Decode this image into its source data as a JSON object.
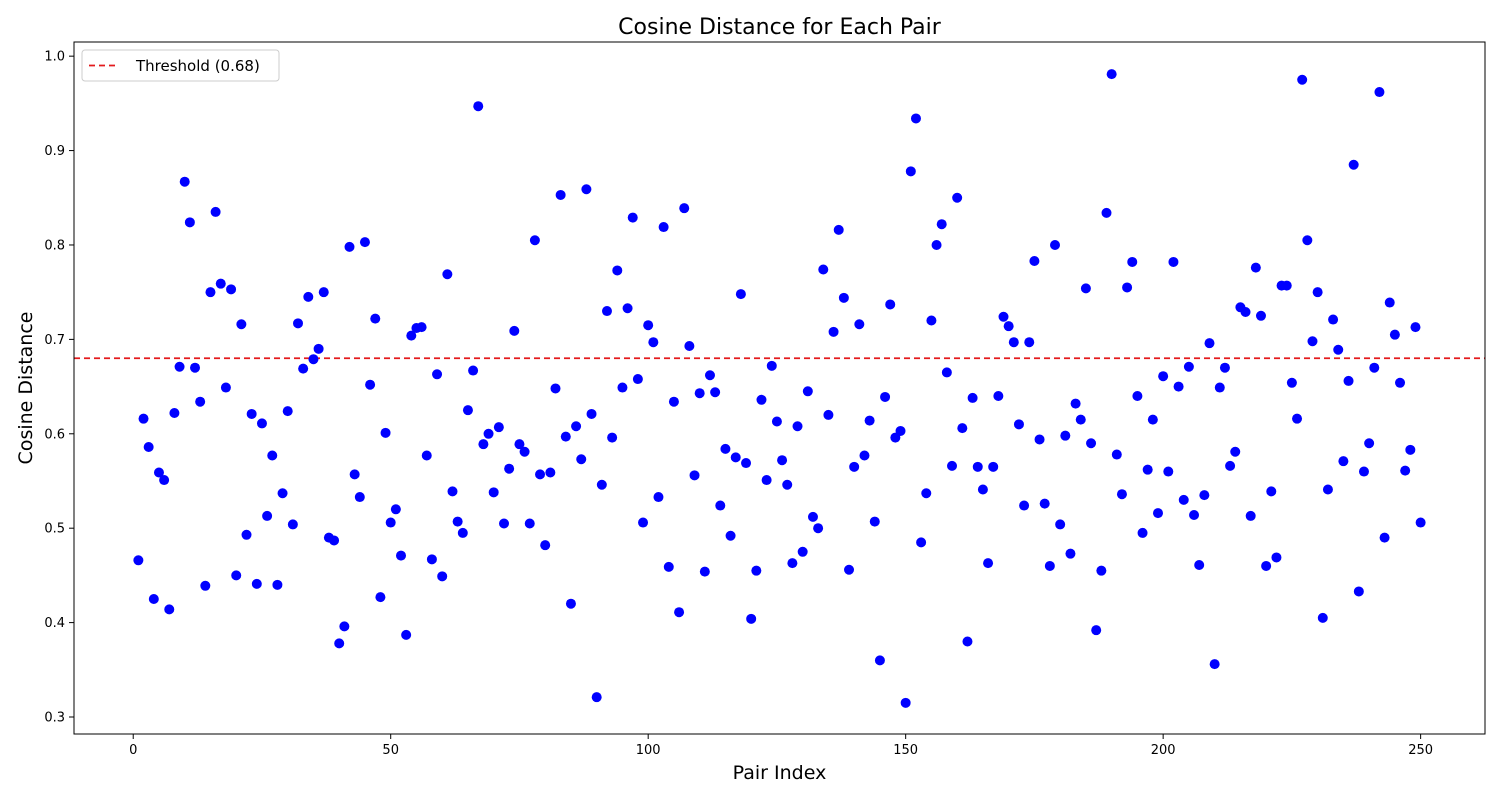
{
  "chart_data": {
    "type": "scatter",
    "title": "Cosine Distance for Each Pair",
    "xlabel": "Pair Index",
    "ylabel": "Cosine Distance",
    "xlim": [
      -11.5,
      262.5
    ],
    "ylim": [
      0.282,
      1.015
    ],
    "xticks": [
      0,
      50,
      100,
      150,
      200,
      250
    ],
    "yticks": [
      0.3,
      0.4,
      0.5,
      0.6,
      0.7,
      0.8,
      0.9,
      1.0
    ],
    "xtick_labels": [
      "0",
      "50",
      "100",
      "150",
      "200",
      "250"
    ],
    "ytick_labels": [
      "0.3",
      "0.4",
      "0.5",
      "0.6",
      "0.7",
      "0.8",
      "0.9",
      "1.0"
    ],
    "grid": false,
    "legend": {
      "placement": "top-left",
      "entries": [
        "Threshold (0.68)"
      ]
    },
    "threshold": {
      "value": 0.68,
      "label": "Threshold (0.68)",
      "color": "#e41a1c",
      "style": "dashed"
    },
    "point_color": "#0000ff",
    "series": [
      {
        "x": [
          1,
          2,
          3,
          4,
          5,
          6,
          7,
          8,
          9,
          10,
          11,
          12,
          13,
          14,
          15,
          16,
          17,
          18,
          19,
          20,
          21,
          22,
          23,
          24,
          25,
          26,
          27,
          28,
          29,
          30,
          31,
          32,
          33,
          34,
          35,
          36,
          37,
          38,
          39,
          40,
          41,
          42,
          43,
          44,
          45,
          46,
          47,
          48,
          49,
          50,
          51,
          52,
          53,
          54,
          55,
          56,
          57,
          58,
          59,
          60,
          61,
          62,
          63,
          64,
          65,
          66,
          67,
          68,
          69,
          70,
          71,
          72,
          73,
          74,
          75,
          76,
          77,
          78,
          79,
          80,
          81,
          82,
          83,
          84,
          85,
          86,
          87,
          88,
          89,
          90,
          91,
          92,
          93,
          94,
          95,
          96,
          97,
          98,
          99,
          100,
          101,
          102,
          103,
          104,
          105,
          106,
          107,
          108,
          109,
          110,
          111,
          112,
          113,
          114,
          115,
          116,
          117,
          118,
          119,
          120,
          121,
          122,
          123,
          124,
          125,
          126,
          127,
          128,
          129,
          130,
          131,
          132,
          133,
          134,
          135,
          136,
          137,
          138,
          139,
          140,
          141,
          142,
          143,
          144,
          145,
          146,
          147,
          148,
          149,
          150,
          151,
          152,
          153,
          154,
          155,
          156,
          157,
          158,
          159,
          160,
          161,
          162,
          163,
          164,
          165,
          166,
          167,
          168,
          169,
          170,
          171,
          172,
          173,
          174,
          175,
          176,
          177,
          178,
          179,
          180,
          181,
          182,
          183,
          184,
          185,
          186,
          187,
          188,
          189,
          190,
          191,
          192,
          193,
          194,
          195,
          196,
          197,
          198,
          199,
          200,
          201,
          202,
          203,
          204,
          205,
          206,
          207,
          208,
          209,
          210,
          211,
          212,
          213,
          214,
          215,
          216,
          217,
          218,
          219,
          220,
          221,
          222,
          223,
          224,
          225,
          226,
          227,
          228,
          229,
          230,
          231,
          232,
          233,
          234,
          235,
          236,
          237,
          238,
          239,
          240,
          241,
          242,
          243,
          244,
          245,
          246,
          247,
          248,
          249,
          250
        ],
        "y": [
          0.466,
          0.616,
          0.586,
          0.425,
          0.559,
          0.551,
          0.414,
          0.622,
          0.671,
          0.867,
          0.824,
          0.67,
          0.634,
          0.439,
          0.75,
          0.835,
          0.759,
          0.649,
          0.753,
          0.45,
          0.716,
          0.493,
          0.621,
          0.441,
          0.611,
          0.513,
          0.577,
          0.44,
          0.537,
          0.624,
          0.504,
          0.717,
          0.669,
          0.745,
          0.679,
          0.69,
          0.75,
          0.49,
          0.487,
          0.378,
          0.396,
          0.798,
          0.557,
          0.533,
          0.803,
          0.652,
          0.722,
          0.427,
          0.601,
          0.506,
          0.52,
          0.471,
          0.387,
          0.704,
          0.712,
          0.713,
          0.577,
          0.467,
          0.663,
          0.449,
          0.769,
          0.539,
          0.507,
          0.495,
          0.625,
          0.667,
          0.947,
          0.589,
          0.6,
          0.538,
          0.607,
          0.505,
          0.563,
          0.709,
          0.589,
          0.581,
          0.505,
          0.805,
          0.557,
          0.482,
          0.559,
          0.648,
          0.853,
          0.597,
          0.42,
          0.608,
          0.573,
          0.859,
          0.621,
          0.321,
          0.546,
          0.73,
          0.596,
          0.773,
          0.649,
          0.733,
          0.829,
          0.658,
          0.506,
          0.715,
          0.697,
          0.533,
          0.819,
          0.459,
          0.634,
          0.411,
          0.839,
          0.693,
          0.556,
          0.643,
          0.454,
          0.662,
          0.644,
          0.524,
          0.584,
          0.492,
          0.575,
          0.748,
          0.569,
          0.404,
          0.455,
          0.636,
          0.551,
          0.672,
          0.613,
          0.572,
          0.546,
          0.463,
          0.608,
          0.475,
          0.645,
          0.512,
          0.5,
          0.774,
          0.62,
          0.708,
          0.816,
          0.744,
          0.456,
          0.565,
          0.716,
          0.577,
          0.614,
          0.507,
          0.36,
          0.639,
          0.737,
          0.596,
          0.603,
          0.315,
          0.878,
          0.934,
          0.485,
          0.537,
          0.72,
          0.8,
          0.822,
          0.665,
          0.566,
          0.85,
          0.606,
          0.38,
          0.638,
          0.565,
          0.541,
          0.463,
          0.565,
          0.64,
          0.724,
          0.714,
          0.697,
          0.61,
          0.524,
          0.697,
          0.783,
          0.594,
          0.526,
          0.46,
          0.8,
          0.504,
          0.598,
          0.473,
          0.632,
          0.615,
          0.754,
          0.59,
          0.392,
          0.455,
          0.834,
          0.981,
          0.578,
          0.536,
          0.755,
          0.782,
          0.64,
          0.495,
          0.562,
          0.615,
          0.516,
          0.661,
          0.56,
          0.782,
          0.65,
          0.53,
          0.671,
          0.514,
          0.461,
          0.535,
          0.696,
          0.356,
          0.649,
          0.67,
          0.566,
          0.581,
          0.734,
          0.729,
          0.513,
          0.776,
          0.725,
          0.46,
          0.539,
          0.469,
          0.757,
          0.757,
          0.654,
          0.616,
          0.975,
          0.805,
          0.698,
          0.75,
          0.405,
          0.541,
          0.721,
          0.689,
          0.571,
          0.656,
          0.885,
          0.433,
          0.56,
          0.59,
          0.67,
          0.962,
          0.49,
          0.739,
          0.705,
          0.654,
          0.561,
          0.583,
          0.713,
          0.506
        ]
      }
    ]
  }
}
